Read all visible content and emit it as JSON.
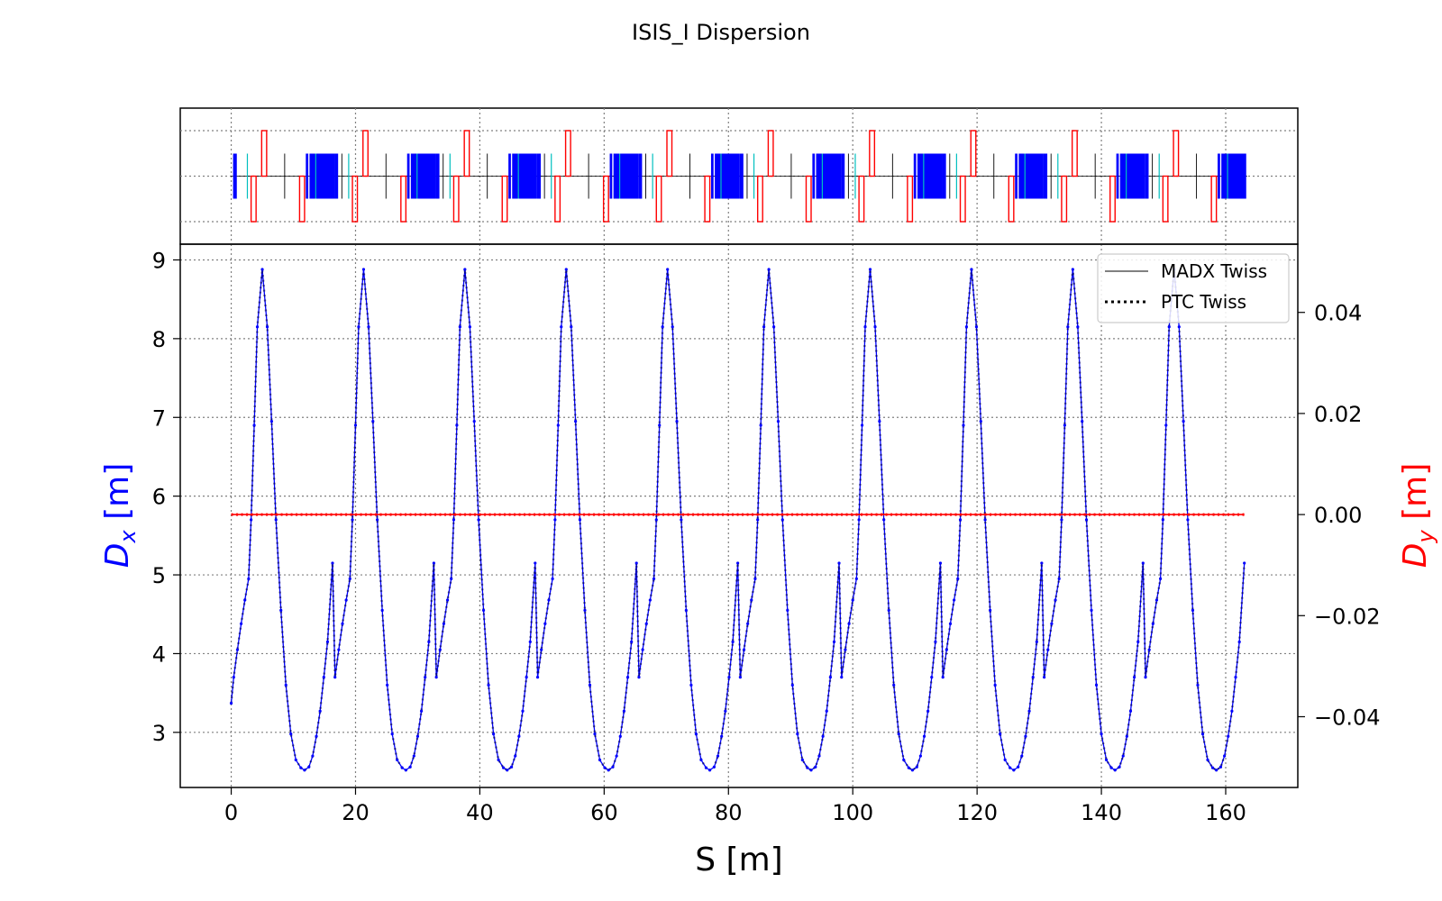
{
  "title": "ISIS_I Dispersion",
  "colors": {
    "dx": "#0000ff",
    "dy": "#ff0000",
    "quad": "#ff0000",
    "bend": "#0000ff",
    "sext": "#00bfbf",
    "marker": "#000000",
    "grid": "#808080"
  },
  "legend": {
    "position": "upper-right",
    "items": [
      {
        "label": "MADX Twiss",
        "style": "solid"
      },
      {
        "label": "PTC Twiss",
        "style": "dotted"
      }
    ]
  },
  "chart_data": {
    "type": "line",
    "title": "ISIS_I Dispersion",
    "xlabel": "S [m]",
    "ylabel_left": "D_x [m]",
    "ylabel_right": "D_y [m]",
    "xlim": [
      -8.2,
      171.6
    ],
    "ylim_left": [
      2.3,
      9.2
    ],
    "ylim_right": [
      -0.054,
      0.0535
    ],
    "xticks": [
      0,
      20,
      40,
      60,
      80,
      100,
      120,
      140,
      160
    ],
    "yticks_left": [
      3,
      4,
      5,
      6,
      7,
      8,
      9
    ],
    "yticks_right": [
      0.04,
      0.02,
      0.0,
      -0.02,
      -0.04
    ],
    "yticklabels_right": [
      "0.04",
      "0.02",
      "0.00",
      "−0.02",
      "−0.04"
    ],
    "grid": true,
    "superperiods": 10,
    "period_length": 16.3,
    "series": [
      {
        "name": "D_x",
        "axis": "left",
        "profile_s": [
          0,
          0.4,
          1.0,
          1.6,
          2.2,
          2.8,
          3.2,
          3.7,
          4.2,
          5.0,
          5.8,
          6.5,
          7.2,
          8.0,
          8.8,
          9.6,
          10.4,
          11.2,
          11.8,
          12.5,
          13.1,
          13.7,
          14.3,
          14.9,
          15.5,
          16.3
        ],
        "profile_dx": [
          3.37,
          3.7,
          4.05,
          4.38,
          4.68,
          4.95,
          5.7,
          6.9,
          8.15,
          8.88,
          8.15,
          6.95,
          5.7,
          4.55,
          3.6,
          2.98,
          2.65,
          2.55,
          2.52,
          2.56,
          2.7,
          2.95,
          3.27,
          3.7,
          4.15,
          5.15
        ]
      },
      {
        "name": "D_y",
        "axis": "right",
        "x": [
          0,
          163
        ],
        "values": [
          0.0,
          0.0
        ]
      }
    ]
  },
  "layout_strip": {
    "elements": [
      {
        "type": "bend",
        "s": 0.3,
        "len": 0.6
      },
      {
        "type": "sext",
        "s": 2.6,
        "len": 0.2
      },
      {
        "type": "quad",
        "s": 3.2,
        "len": 0.8,
        "sign": -1
      },
      {
        "type": "quad",
        "s": 4.9,
        "len": 0.8,
        "sign": 1
      },
      {
        "type": "quad",
        "s": 11.0,
        "len": 0.8,
        "sign": -1
      },
      {
        "type": "bend",
        "s": 12.0,
        "len": 0.4
      },
      {
        "type": "bend",
        "s": 12.6,
        "len": 4.0
      },
      {
        "type": "marker",
        "s": 8.6,
        "len": 0.1
      },
      {
        "type": "marker",
        "s": 17.8,
        "len": 0.1
      },
      {
        "type": "sext",
        "s": 13.6,
        "len": 0.15
      }
    ]
  }
}
